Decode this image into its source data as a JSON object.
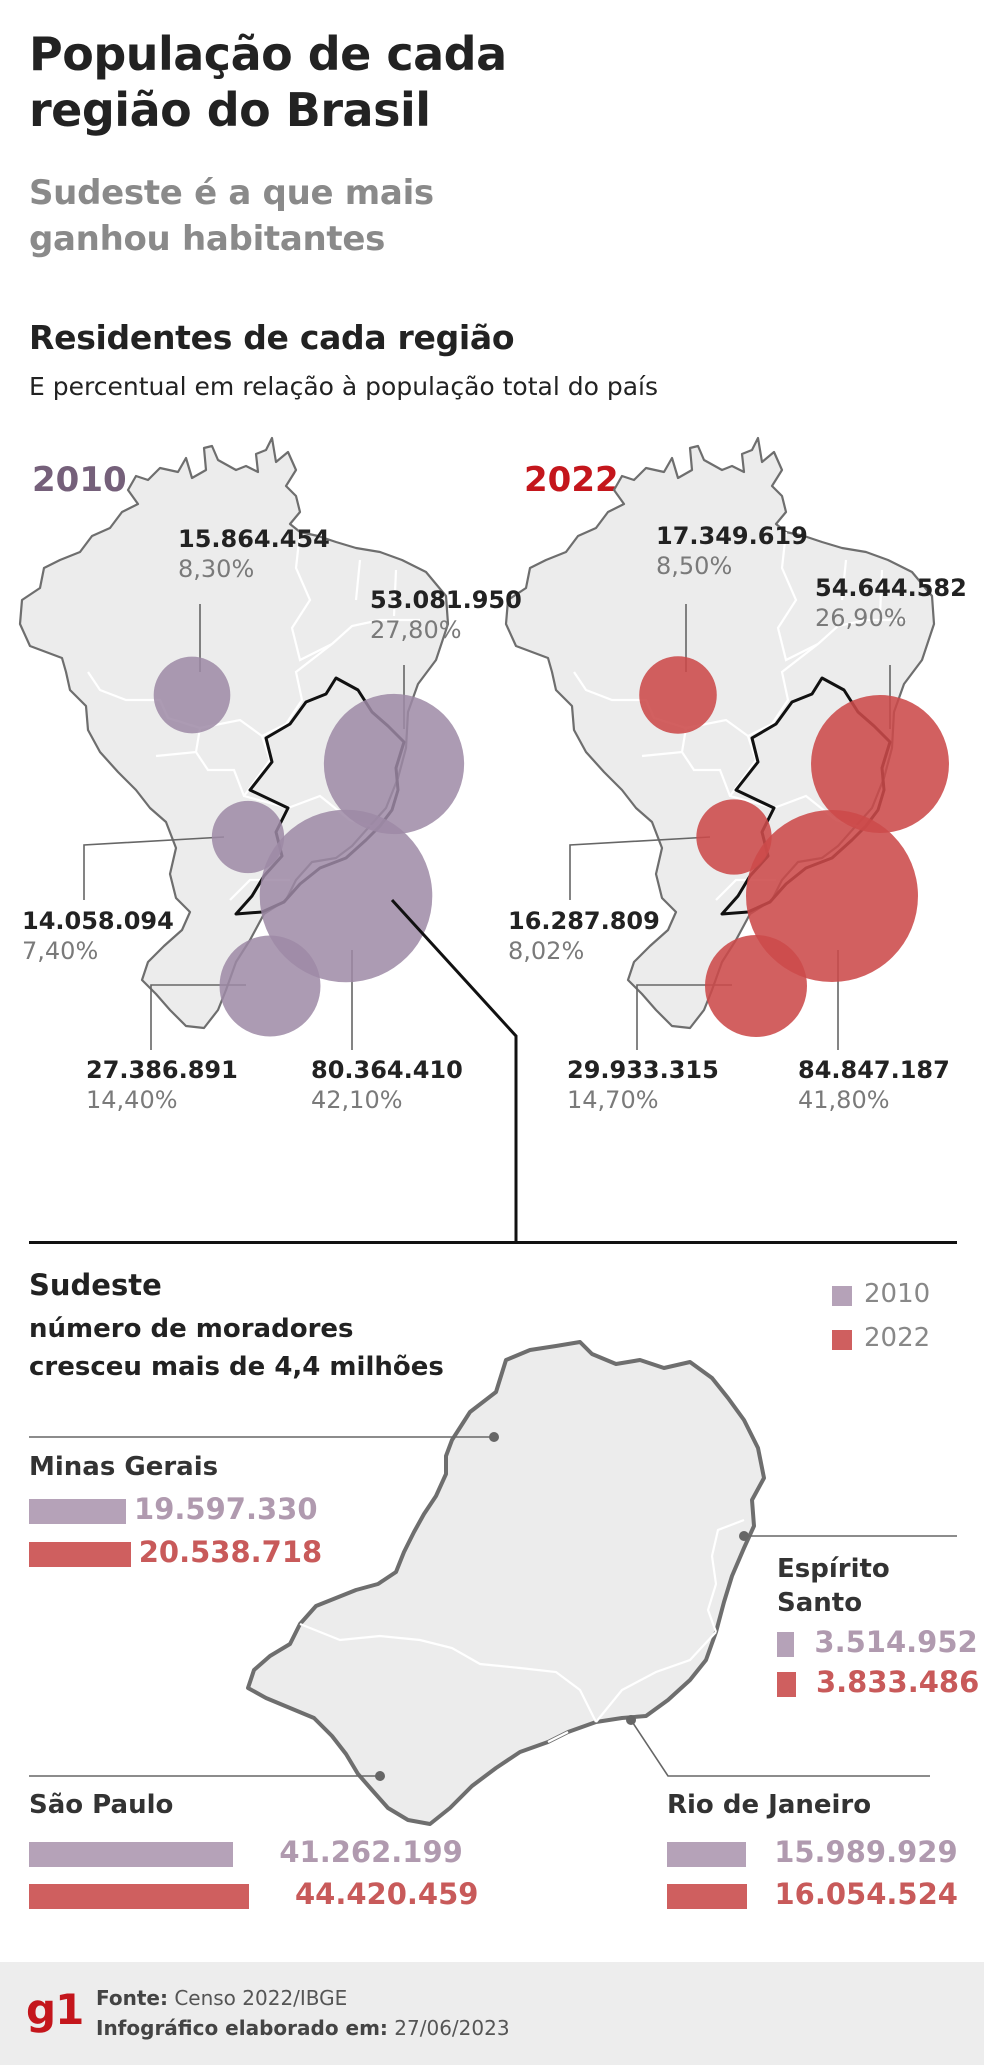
{
  "header": {
    "title_line1": "População de cada",
    "title_line2": "região do Brasil",
    "subtitle_line1": "Sudeste é a que mais",
    "subtitle_line2": "ganhou habitantes"
  },
  "section": {
    "title": "Residentes de cada região",
    "subtitle": "E percentual em relação à população total do país"
  },
  "colors": {
    "color_2010": "#9e8aa6",
    "color_2022": "#cc4a4a",
    "year_2010_text": "#75607a",
    "year_2022_text": "#c4161c",
    "map_fill": "#ececec",
    "map_stroke": "#6e6e6e",
    "bar_2010": "#b5a2b8",
    "bar_2022": "#cf5f5f"
  },
  "chart_data": [
    {
      "type": "bubble-map",
      "year_label": "2010",
      "regions": [
        {
          "region": "Norte",
          "population": "15.864.454",
          "percent": "8,30%",
          "share": 8.3
        },
        {
          "region": "Nordeste",
          "population": "53.081.950",
          "percent": "27,80%",
          "share": 27.8
        },
        {
          "region": "Centro-Oeste",
          "population": "14.058.094",
          "percent": "7,40%",
          "share": 7.4
        },
        {
          "region": "Sul",
          "population": "27.386.891",
          "percent": "14,40%",
          "share": 14.4
        },
        {
          "region": "Sudeste",
          "population": "80.364.410",
          "percent": "42,10%",
          "share": 42.1
        }
      ]
    },
    {
      "type": "bubble-map",
      "year_label": "2022",
      "regions": [
        {
          "region": "Norte",
          "population": "17.349.619",
          "percent": "8,50%",
          "share": 8.5
        },
        {
          "region": "Nordeste",
          "population": "54.644.582",
          "percent": "26,90%",
          "share": 26.9
        },
        {
          "region": "Centro-Oeste",
          "population": "16.287.809",
          "percent": "8,02%",
          "share": 8.02
        },
        {
          "region": "Sul",
          "population": "29.933.315",
          "percent": "14,70%",
          "share": 14.7
        },
        {
          "region": "Sudeste",
          "population": "84.847.187",
          "percent": "41,80%",
          "share": 41.8
        }
      ]
    },
    {
      "type": "bar",
      "title": "Sudeste",
      "subtitle_line1": "número de moradores",
      "subtitle_line2": "cresceu mais de 4,4 milhões",
      "legend": [
        "2010",
        "2022"
      ],
      "states": [
        {
          "name_line1": "Minas Gerais",
          "name_line2": "",
          "v2010_label": "19.597.330",
          "v2022_label": "20.538.718",
          "v2010": 19597330,
          "v2022": 20538718
        },
        {
          "name_line1": "Espírito",
          "name_line2": "Santo",
          "v2010_label": "3.514.952",
          "v2022_label": "3.833.486",
          "v2010": 3514952,
          "v2022": 3833486
        },
        {
          "name_line1": "São Paulo",
          "name_line2": "",
          "v2010_label": "41.262.199",
          "v2022_label": "44.420.459",
          "v2010": 41262199,
          "v2022": 44420459
        },
        {
          "name_line1": "Rio de Janeiro",
          "name_line2": "",
          "v2010_label": "15.989.929",
          "v2022_label": "16.054.524",
          "v2010": 15989929,
          "v2022": 16054524
        }
      ]
    }
  ],
  "footer": {
    "logo": "g1",
    "source_label": "Fonte:",
    "source_value": "Censo 2022/IBGE",
    "made_label": "Infográfico elaborado em:",
    "made_value": "27/06/2023"
  }
}
